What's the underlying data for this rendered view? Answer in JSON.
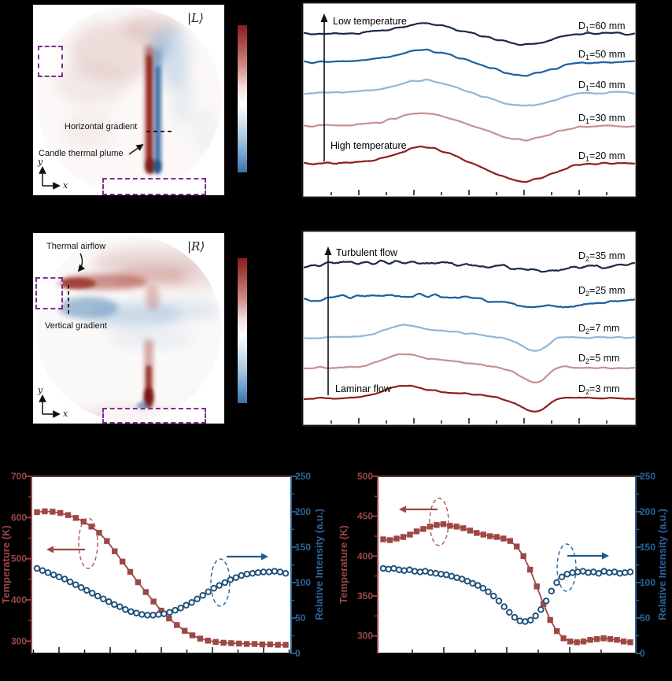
{
  "panel_a": {
    "ket": "|L⟩",
    "gradient_label": "Horizontal gradient",
    "plume_label": "Candle thermal plume",
    "axis_x": "x",
    "axis_y": "y"
  },
  "panel_c": {
    "ket": "|R⟩",
    "airflow_label": "Thermal airflow",
    "gradient_label": "Vertical gradient",
    "axis_x": "x",
    "axis_y": "y"
  },
  "colorbar": {
    "top_color": "#8e1c1c",
    "mid_color": "#ffffff",
    "bottom_color": "#3672a8"
  },
  "chart_data": [
    {
      "id": "b",
      "type": "line",
      "title": "Interference traces for horizontal gradient distances D1",
      "arrow": {
        "top": "Low temperature",
        "bottom": "High temperature"
      },
      "legend_position": "right",
      "grid": false,
      "shapes": {
        "wave": [
          [
            0,
            0
          ],
          [
            0.05,
            0.3
          ],
          [
            0.1,
            0.6
          ],
          [
            0.15,
            1.2
          ],
          [
            0.2,
            2.5
          ],
          [
            0.24,
            5
          ],
          [
            0.28,
            9
          ],
          [
            0.32,
            13
          ],
          [
            0.355,
            15
          ],
          [
            0.39,
            13.5
          ],
          [
            0.43,
            10
          ],
          [
            0.47,
            5
          ],
          [
            0.51,
            0
          ],
          [
            0.55,
            -5
          ],
          [
            0.59,
            -10
          ],
          [
            0.63,
            -14
          ],
          [
            0.665,
            -16
          ],
          [
            0.7,
            -14
          ],
          [
            0.74,
            -10
          ],
          [
            0.78,
            -5
          ],
          [
            0.82,
            -1.5
          ],
          [
            0.86,
            0
          ],
          [
            0.92,
            0.3
          ],
          [
            1,
            0
          ]
        ]
      },
      "series": [
        {
          "label": {
            "main": "D",
            "sub": "1",
            "rest": "=60 mm"
          },
          "color": "#1b2b45",
          "baseline": 41,
          "amp": 0.85,
          "noise": 1.4,
          "shape": "wave",
          "seed": 101
        },
        {
          "label": {
            "main": "D",
            "sub": "1",
            "rest": "=50 mm"
          },
          "color": "#1e5f9e",
          "baseline": 77,
          "amp": 1.05,
          "noise": 1.4,
          "shape": "wave",
          "seed": 202
        },
        {
          "label": {
            "main": "D",
            "sub": "1",
            "rest": "=40 mm"
          },
          "color": "#8fb6d9",
          "baseline": 116,
          "amp": 1.1,
          "noise": 1.2,
          "shape": "wave",
          "seed": 303
        },
        {
          "label": {
            "main": "D",
            "sub": "1",
            "rest": "=30 mm"
          },
          "color": "#c99090",
          "baseline": 158,
          "amp": 1.15,
          "noise": 1.2,
          "shape": "wave",
          "seed": 404
        },
        {
          "label": {
            "main": "D",
            "sub": "1",
            "rest": "=20 mm"
          },
          "color": "#8e1f1f",
          "baseline": 206,
          "amp": 1.45,
          "noise": 1.1,
          "shape": "wave",
          "seed": 505
        }
      ]
    },
    {
      "id": "d",
      "type": "line",
      "title": "Interference traces for vertical gradient distances D2",
      "arrow": {
        "top": "Turbulent flow",
        "bottom": "Laminar flow"
      },
      "legend_position": "right",
      "grid": false,
      "shapes": {
        "turb_hi": [
          [
            0,
            0
          ],
          [
            0.06,
            1.5
          ],
          [
            0.12,
            3
          ],
          [
            0.18,
            3.5
          ],
          [
            0.24,
            4
          ],
          [
            0.3,
            4
          ],
          [
            0.36,
            3
          ],
          [
            0.42,
            2
          ],
          [
            0.48,
            1
          ],
          [
            0.54,
            0
          ],
          [
            0.6,
            -2
          ],
          [
            0.66,
            -4
          ],
          [
            0.72,
            -6
          ],
          [
            0.78,
            -5
          ],
          [
            0.84,
            -3
          ],
          [
            0.9,
            -2
          ],
          [
            0.95,
            0
          ],
          [
            1,
            1
          ]
        ],
        "turb_mid": [
          [
            0,
            0
          ],
          [
            0.06,
            1
          ],
          [
            0.1,
            3
          ],
          [
            0.14,
            5
          ],
          [
            0.18,
            5.5
          ],
          [
            0.24,
            5
          ],
          [
            0.3,
            6
          ],
          [
            0.34,
            6.5
          ],
          [
            0.38,
            5
          ],
          [
            0.44,
            4
          ],
          [
            0.5,
            2
          ],
          [
            0.55,
            0
          ],
          [
            0.6,
            -3
          ],
          [
            0.65,
            -6
          ],
          [
            0.7,
            -8
          ],
          [
            0.75,
            -8.5
          ],
          [
            0.8,
            -7
          ],
          [
            0.86,
            -5
          ],
          [
            0.92,
            -2
          ],
          [
            1,
            -0.5
          ]
        ],
        "laminar": [
          [
            0,
            0
          ],
          [
            0.08,
            0.2
          ],
          [
            0.14,
            0.5
          ],
          [
            0.18,
            1.5
          ],
          [
            0.22,
            5
          ],
          [
            0.26,
            10
          ],
          [
            0.295,
            13
          ],
          [
            0.33,
            11.5
          ],
          [
            0.37,
            8.5
          ],
          [
            0.42,
            6.5
          ],
          [
            0.47,
            5
          ],
          [
            0.52,
            3.5
          ],
          [
            0.56,
            2
          ],
          [
            0.6,
            -0.5
          ],
          [
            0.64,
            -5
          ],
          [
            0.67,
            -10
          ],
          [
            0.695,
            -14
          ],
          [
            0.72,
            -12
          ],
          [
            0.74,
            -6
          ],
          [
            0.76,
            -1
          ],
          [
            0.79,
            0.8
          ],
          [
            0.84,
            0.3
          ],
          [
            0.9,
            0
          ],
          [
            1,
            0
          ]
        ]
      },
      "series": [
        {
          "label": {
            "main": "D",
            "sub": "2",
            "rest": "=35 mm"
          },
          "color": "#1b2b45",
          "baseline": 45,
          "amp": 1.0,
          "noise": 2.6,
          "shape": "turb_hi",
          "seed": 606
        },
        {
          "label": {
            "main": "D",
            "sub": "2",
            "rest": "=25 mm"
          },
          "color": "#1e5f9e",
          "baseline": 89,
          "amp": 1.0,
          "noise": 2.4,
          "shape": "turb_mid",
          "seed": 707
        },
        {
          "label": {
            "main": "D",
            "sub": "2",
            "rest": "=7 mm"
          },
          "color": "#8fb6d9",
          "baseline": 137,
          "amp": 1.3,
          "noise": 1.1,
          "shape": "laminar",
          "seed": 808
        },
        {
          "label": {
            "main": "D",
            "sub": "2",
            "rest": "=5 mm"
          },
          "color": "#c99090",
          "baseline": 175,
          "amp": 1.35,
          "noise": 1.1,
          "shape": "laminar",
          "seed": 909
        },
        {
          "label": {
            "main": "D",
            "sub": "2",
            "rest": "=3 mm"
          },
          "color": "#8e1f1f",
          "baseline": 214,
          "amp": 1.3,
          "noise": 0.9,
          "shape": "laminar",
          "seed": 111
        }
      ]
    },
    {
      "id": "e",
      "type": "scatter",
      "title": "Temperature and relative intensity vs distance (horizontal gradient)",
      "grid": false,
      "left_axis": {
        "title": "Temperature (K)",
        "color": "#9c4646",
        "ticks": [
          700,
          600,
          500,
          400,
          300
        ],
        "range": [
          270,
          700
        ]
      },
      "right_axis": {
        "title": "Relative Intensity (a.u.)",
        "color": "#2a6499",
        "ticks": [
          250,
          200,
          150,
          100,
          50,
          0
        ],
        "range": [
          0,
          250
        ]
      },
      "series": [
        {
          "name": "temperature",
          "axis": "left",
          "marker": "square",
          "color": "#9e4744",
          "connect": true,
          "values": [
            613,
            615,
            614,
            611,
            606,
            599,
            590,
            578,
            563,
            543,
            518,
            493,
            468,
            443,
            419,
            396,
            374,
            355,
            339,
            325,
            314,
            306,
            301,
            298,
            296,
            295,
            294,
            293,
            293,
            292,
            292,
            291,
            291
          ]
        },
        {
          "name": "relative_intensity",
          "axis": "right",
          "marker": "circle",
          "color": "#1d4f79",
          "connect": false,
          "values": [
            120,
            117,
            114,
            111,
            108,
            105,
            101,
            97,
            93,
            89,
            85,
            81,
            77,
            73,
            69,
            66,
            62,
            59,
            57,
            55,
            54,
            54,
            55,
            56,
            58,
            61,
            64,
            68,
            72,
            77,
            82,
            87,
            92,
            96,
            100,
            104,
            107,
            110,
            112,
            113,
            114,
            115,
            115,
            116,
            115,
            113
          ]
        }
      ]
    },
    {
      "id": "f",
      "type": "scatter",
      "title": "Temperature and relative intensity vs distance (vertical gradient)",
      "grid": false,
      "left_axis": {
        "title": "Temperature (K)",
        "color": "#9c4646",
        "ticks": [
          500,
          450,
          400,
          350,
          300
        ],
        "range": [
          278,
          500
        ]
      },
      "right_axis": {
        "title": "Relative Intensity (a.u.)",
        "color": "#2a6499",
        "ticks": [
          250,
          200,
          150,
          100,
          50,
          0
        ],
        "range": [
          0,
          250
        ]
      },
      "series": [
        {
          "name": "temperature",
          "axis": "left",
          "marker": "square",
          "color": "#9e4744",
          "connect": true,
          "values": [
            421,
            420,
            422,
            424,
            427,
            431,
            434,
            437,
            439,
            440,
            438,
            437,
            435,
            432,
            429,
            427,
            425,
            424,
            422,
            419,
            412,
            400,
            383,
            362,
            340,
            320,
            306,
            297,
            293,
            292,
            293,
            295,
            296,
            297,
            296,
            295,
            293,
            292
          ]
        },
        {
          "name": "relative_intensity",
          "axis": "right",
          "marker": "circle",
          "color": "#1d4f79",
          "connect": false,
          "values": [
            120,
            119,
            120,
            118,
            117,
            118,
            116,
            115,
            116,
            114,
            113,
            112,
            111,
            109,
            107,
            105,
            102,
            99,
            96,
            92,
            87,
            81,
            74,
            66,
            58,
            51,
            46,
            45,
            47,
            53,
            62,
            74,
            88,
            100,
            108,
            112,
            114,
            115,
            116,
            114,
            115,
            113,
            116,
            114,
            115,
            113,
            114,
            115
          ]
        }
      ]
    }
  ]
}
